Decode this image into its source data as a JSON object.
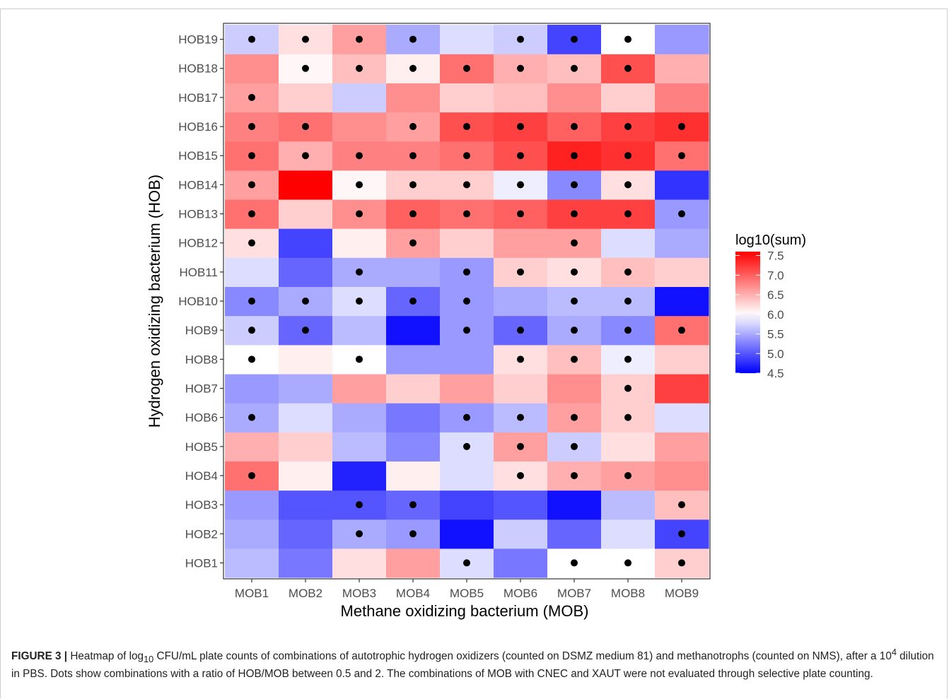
{
  "chart_data": {
    "type": "heatmap",
    "title": "",
    "xlabel": "Methane oxidizing bacterium (MOB)",
    "ylabel": "Hydrogen oxidizing bacterium (HOB)",
    "x_categories": [
      "MOB1",
      "MOB2",
      "MOB3",
      "MOB4",
      "MOB5",
      "MOB6",
      "MOB7",
      "MOB8",
      "MOB9"
    ],
    "y_categories": [
      "HOB1",
      "HOB2",
      "HOB3",
      "HOB4",
      "HOB5",
      "HOB6",
      "HOB7",
      "HOB8",
      "HOB9",
      "HOB10",
      "HOB11",
      "HOB12",
      "HOB13",
      "HOB14",
      "HOB15",
      "HOB16",
      "HOB17",
      "HOB18",
      "HOB19"
    ],
    "values": [
      [
        5.6,
        5.2,
        6.2,
        6.6,
        5.8,
        5.2,
        6.0,
        6.0,
        6.3
      ],
      [
        5.5,
        5.1,
        5.5,
        5.4,
        4.6,
        5.7,
        5.1,
        5.8,
        4.9
      ],
      [
        5.4,
        5.0,
        5.0,
        5.1,
        4.9,
        5.0,
        4.6,
        5.6,
        6.4
      ],
      [
        6.9,
        6.1,
        4.7,
        6.1,
        5.8,
        6.2,
        6.5,
        6.6,
        6.7
      ],
      [
        6.5,
        6.3,
        5.6,
        5.3,
        5.8,
        6.6,
        5.7,
        6.2,
        6.6
      ],
      [
        5.5,
        5.8,
        5.5,
        5.2,
        5.4,
        5.6,
        6.6,
        6.3,
        5.8
      ],
      [
        5.4,
        5.5,
        6.6,
        6.3,
        6.6,
        6.3,
        6.7,
        6.3,
        7.2
      ],
      [
        6.0,
        6.1,
        6.0,
        5.4,
        5.4,
        6.2,
        6.4,
        5.9,
        6.3
      ],
      [
        5.7,
        5.1,
        5.6,
        4.6,
        5.4,
        5.1,
        5.5,
        5.3,
        6.9
      ],
      [
        5.3,
        5.5,
        5.8,
        5.1,
        5.4,
        5.5,
        5.6,
        5.6,
        4.6
      ],
      [
        5.8,
        5.1,
        5.5,
        5.5,
        5.4,
        6.3,
        6.2,
        6.4,
        6.3
      ],
      [
        6.2,
        4.9,
        6.1,
        6.6,
        6.3,
        6.6,
        6.6,
        5.8,
        5.5
      ],
      [
        6.9,
        6.3,
        6.7,
        7.0,
        6.9,
        7.0,
        7.2,
        7.2,
        5.4
      ],
      [
        6.6,
        7.6,
        6.05,
        6.3,
        6.3,
        5.9,
        5.3,
        6.2,
        4.8
      ],
      [
        6.9,
        6.5,
        6.8,
        6.8,
        6.9,
        7.1,
        7.4,
        7.3,
        6.9
      ],
      [
        6.8,
        6.9,
        6.7,
        6.6,
        7.1,
        7.2,
        7.0,
        7.2,
        7.3
      ],
      [
        6.6,
        6.3,
        5.7,
        6.7,
        6.3,
        6.4,
        6.7,
        6.3,
        6.8
      ],
      [
        6.7,
        6.05,
        6.4,
        6.1,
        6.9,
        6.5,
        6.4,
        7.1,
        6.5
      ],
      [
        5.7,
        6.2,
        6.6,
        5.5,
        5.8,
        5.7,
        4.9,
        6.0,
        5.4
      ]
    ],
    "dots": [
      [
        0,
        0,
        0,
        0,
        1,
        0,
        1,
        1,
        1
      ],
      [
        0,
        0,
        1,
        1,
        0,
        0,
        0,
        0,
        1
      ],
      [
        0,
        0,
        1,
        1,
        0,
        0,
        0,
        0,
        1
      ],
      [
        1,
        0,
        0,
        0,
        0,
        1,
        1,
        1,
        0
      ],
      [
        0,
        0,
        0,
        0,
        1,
        1,
        1,
        0,
        0
      ],
      [
        1,
        0,
        0,
        0,
        1,
        1,
        1,
        1,
        0
      ],
      [
        0,
        0,
        0,
        0,
        0,
        0,
        0,
        1,
        0
      ],
      [
        1,
        0,
        1,
        0,
        0,
        1,
        1,
        1,
        0
      ],
      [
        1,
        1,
        0,
        0,
        1,
        1,
        1,
        1,
        1
      ],
      [
        1,
        1,
        1,
        1,
        1,
        0,
        1,
        1,
        0
      ],
      [
        0,
        0,
        1,
        0,
        1,
        1,
        1,
        1,
        0
      ],
      [
        1,
        0,
        0,
        1,
        0,
        0,
        1,
        0,
        0
      ],
      [
        1,
        0,
        1,
        1,
        1,
        1,
        1,
        1,
        1
      ],
      [
        1,
        0,
        1,
        1,
        1,
        1,
        1,
        1,
        0
      ],
      [
        1,
        1,
        1,
        1,
        1,
        1,
        1,
        1,
        1
      ],
      [
        1,
        1,
        0,
        1,
        1,
        1,
        1,
        1,
        1
      ],
      [
        1,
        0,
        0,
        0,
        0,
        0,
        0,
        0,
        0
      ],
      [
        0,
        1,
        1,
        1,
        1,
        1,
        1,
        1,
        0
      ],
      [
        1,
        1,
        1,
        1,
        0,
        1,
        1,
        1,
        0
      ]
    ],
    "color_scale": {
      "low": "#0000ff",
      "mid": "#ffffff",
      "high": "#ff0000",
      "min": 4.5,
      "mid_value": 6.0,
      "max": 7.6
    },
    "legend": {
      "title": "log10(sum)",
      "ticks": [
        "7.5",
        "7.0",
        "6.5",
        "6.0",
        "5.5",
        "5.0",
        "4.5"
      ],
      "tick_values": [
        7.5,
        7.0,
        6.5,
        6.0,
        5.5,
        5.0,
        4.5
      ],
      "placement": "right"
    },
    "grid": false
  },
  "caption": {
    "label": "FIGURE 3 |",
    "text_1": " Heatmap of log",
    "sub": "10",
    "text_2": " CFU/mL plate counts of combinations of autotrophic hydrogen oxidizers (counted on DSMZ medium 81) and methanotrophs (counted on NMS), after a 10",
    "sup": "4",
    "text_3": " dilution in PBS. Dots show combinations with a ratio of HOB/MOB between 0.5 and 2. The combinations of MOB with CNEC and XAUT were not evaluated through selective plate counting."
  }
}
